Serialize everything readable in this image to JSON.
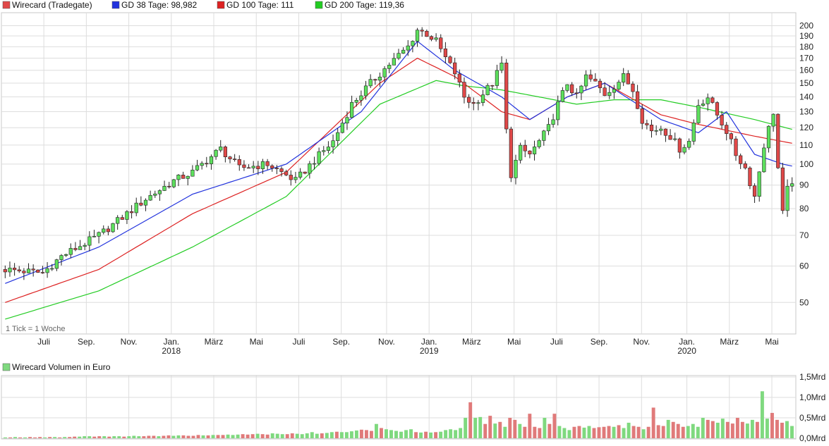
{
  "legend": {
    "main": "Wirecard (Tradegate)",
    "gd38": "GD 38 Tage: 98,982",
    "gd100": "GD 100 Tage: 111",
    "gd200": "GD 200 Tage: 119,36",
    "volume": "Wirecard Volumen in Euro"
  },
  "tick_note": "1 Tick = 1 Woche",
  "colors": {
    "up": "#5de05d",
    "down": "#e04848",
    "gd38": "#2233dd",
    "gd100": "#dd2222",
    "gd200": "#22cc22",
    "vol_up": "#7fd97f",
    "vol_down": "#e07a7a",
    "grid": "#dddddd"
  },
  "chart_data": [
    {
      "type": "candlestick",
      "title": "Wirecard (Tradegate)",
      "y_scale": "log",
      "ylim": [
        43,
        212
      ],
      "yticks": [
        50,
        60,
        70,
        80,
        90,
        100,
        110,
        120,
        130,
        140,
        150,
        160,
        170,
        180,
        190,
        200
      ],
      "x_month_labels": [
        "Juli",
        "Sep.",
        "Nov.",
        "Jan.",
        "März",
        "Mai",
        "Juli",
        "Sep.",
        "Nov.",
        "Jan.",
        "März",
        "Mai",
        "Juli",
        "Sep.",
        "Nov.",
        "Jan.",
        "März",
        "Mai"
      ],
      "x_year_labels": [
        "2018",
        "2019",
        "2020"
      ],
      "series_ohlc": {
        "name": "Wirecard (Tradegate)",
        "x_start": "2017-06",
        "interval": "1 week",
        "close_points": [
          [
            0,
            59
          ],
          [
            8,
            58
          ],
          [
            12,
            63
          ],
          [
            20,
            70
          ],
          [
            26,
            78
          ],
          [
            30,
            84
          ],
          [
            36,
            92
          ],
          [
            40,
            96
          ],
          [
            46,
            108
          ],
          [
            50,
            98
          ],
          [
            56,
            100
          ],
          [
            62,
            92
          ],
          [
            66,
            102
          ],
          [
            70,
            112
          ],
          [
            74,
            135
          ],
          [
            78,
            150
          ],
          [
            82,
            165
          ],
          [
            86,
            180
          ],
          [
            88,
            196
          ],
          [
            90,
            192
          ],
          [
            92,
            185
          ],
          [
            94,
            170
          ],
          [
            96,
            158
          ],
          [
            98,
            140
          ],
          [
            100,
            135
          ],
          [
            104,
            150
          ],
          [
            106,
            165
          ],
          [
            107,
            118
          ],
          [
            108,
            95
          ],
          [
            110,
            108
          ],
          [
            112,
            105
          ],
          [
            114,
            112
          ],
          [
            116,
            120
          ],
          [
            118,
            135
          ],
          [
            120,
            150
          ],
          [
            122,
            140
          ],
          [
            124,
            155
          ],
          [
            126,
            150
          ],
          [
            128,
            142
          ],
          [
            130,
            148
          ],
          [
            132,
            155
          ],
          [
            134,
            145
          ],
          [
            136,
            125
          ],
          [
            138,
            118
          ],
          [
            140,
            120
          ],
          [
            142,
            115
          ],
          [
            144,
            108
          ],
          [
            146,
            112
          ],
          [
            148,
            135
          ],
          [
            150,
            140
          ],
          [
            152,
            128
          ],
          [
            154,
            118
          ],
          [
            156,
            105
          ],
          [
            158,
            98
          ],
          [
            160,
            85
          ],
          [
            162,
            110
          ],
          [
            164,
            130
          ],
          [
            165,
            98
          ],
          [
            166,
            78
          ],
          [
            167,
            88
          ],
          [
            168,
            92
          ]
        ]
      },
      "series_lines": [
        {
          "name": "GD 38 Tage: 98,982",
          "points": [
            [
              0,
              55
            ],
            [
              20,
              66
            ],
            [
              40,
              86
            ],
            [
              60,
              100
            ],
            [
              76,
              130
            ],
            [
              88,
              185
            ],
            [
              96,
              160
            ],
            [
              106,
              140
            ],
            [
              112,
              125
            ],
            [
              120,
              140
            ],
            [
              128,
              150
            ],
            [
              140,
              125
            ],
            [
              148,
              117
            ],
            [
              154,
              130
            ],
            [
              160,
              105
            ],
            [
              166,
              100
            ],
            [
              168,
              99
            ]
          ]
        },
        {
          "name": "GD 100 Tage: 111",
          "points": [
            [
              0,
              50
            ],
            [
              20,
              59
            ],
            [
              40,
              78
            ],
            [
              60,
              96
            ],
            [
              80,
              150
            ],
            [
              88,
              170
            ],
            [
              96,
              155
            ],
            [
              106,
              130
            ],
            [
              112,
              125
            ],
            [
              120,
              140
            ],
            [
              128,
              150
            ],
            [
              140,
              128
            ],
            [
              148,
              122
            ],
            [
              160,
              115
            ],
            [
              168,
              111
            ]
          ]
        },
        {
          "name": "GD 200 Tage: 119,36",
          "points": [
            [
              0,
              46
            ],
            [
              20,
              53
            ],
            [
              40,
              66
            ],
            [
              60,
              85
            ],
            [
              80,
              135
            ],
            [
              92,
              152
            ],
            [
              98,
              148
            ],
            [
              106,
              145
            ],
            [
              114,
              140
            ],
            [
              122,
              135
            ],
            [
              130,
              138
            ],
            [
              140,
              138
            ],
            [
              148,
              133
            ],
            [
              160,
              125
            ],
            [
              168,
              119
            ]
          ]
        }
      ]
    },
    {
      "type": "bar",
      "title": "Wirecard Volumen in Euro",
      "yticks": [
        "0,0Mrd",
        "0,5Mrd",
        "1,0Mrd",
        "1,5Mrd"
      ],
      "ylim": [
        0,
        1.5
      ],
      "unit": "Mrd Euro",
      "values": [
        0.02,
        0.02,
        0.03,
        0.02,
        0.02,
        0.03,
        0.02,
        0.03,
        0.02,
        0.03,
        0.03,
        0.02,
        0.03,
        0.03,
        0.04,
        0.04,
        0.05,
        0.05,
        0.04,
        0.05,
        0.05,
        0.04,
        0.05,
        0.05,
        0.04,
        0.05,
        0.06,
        0.05,
        0.05,
        0.06,
        0.06,
        0.05,
        0.06,
        0.07,
        0.06,
        0.07,
        0.07,
        0.06,
        0.06,
        0.08,
        0.07,
        0.07,
        0.08,
        0.08,
        0.08,
        0.09,
        0.08,
        0.09,
        0.1,
        0.09,
        0.1,
        0.11,
        0.1,
        0.09,
        0.12,
        0.11,
        0.1,
        0.1,
        0.12,
        0.11,
        0.1,
        0.12,
        0.15,
        0.11,
        0.12,
        0.13,
        0.15,
        0.16,
        0.15,
        0.15,
        0.17,
        0.19,
        0.21,
        0.2,
        0.18,
        0.35,
        0.25,
        0.22,
        0.2,
        0.18,
        0.16,
        0.2,
        0.22,
        0.15,
        0.14,
        0.16,
        0.14,
        0.15,
        0.16,
        0.2,
        0.22,
        0.2,
        0.25,
        0.5,
        0.88,
        0.5,
        0.52,
        0.35,
        0.55,
        0.36,
        0.4,
        0.28,
        0.5,
        0.45,
        0.35,
        0.28,
        0.6,
        0.28,
        0.25,
        0.5,
        0.35,
        0.6,
        0.3,
        0.25,
        0.2,
        0.28,
        0.3,
        0.26,
        0.3,
        0.25,
        0.27,
        0.28,
        0.3,
        0.28,
        0.32,
        0.25,
        0.38,
        0.3,
        0.28,
        0.22,
        0.28,
        0.75,
        0.32,
        0.3,
        0.45,
        0.4,
        0.35,
        0.28,
        0.3,
        0.35,
        0.28,
        0.5,
        0.45,
        0.42,
        0.38,
        0.48,
        0.4,
        0.36,
        0.5,
        0.4,
        0.36,
        0.45,
        0.4,
        1.15,
        0.48,
        0.62,
        0.45,
        0.38,
        0.42,
        0.3
      ],
      "direction": "alternating"
    }
  ]
}
